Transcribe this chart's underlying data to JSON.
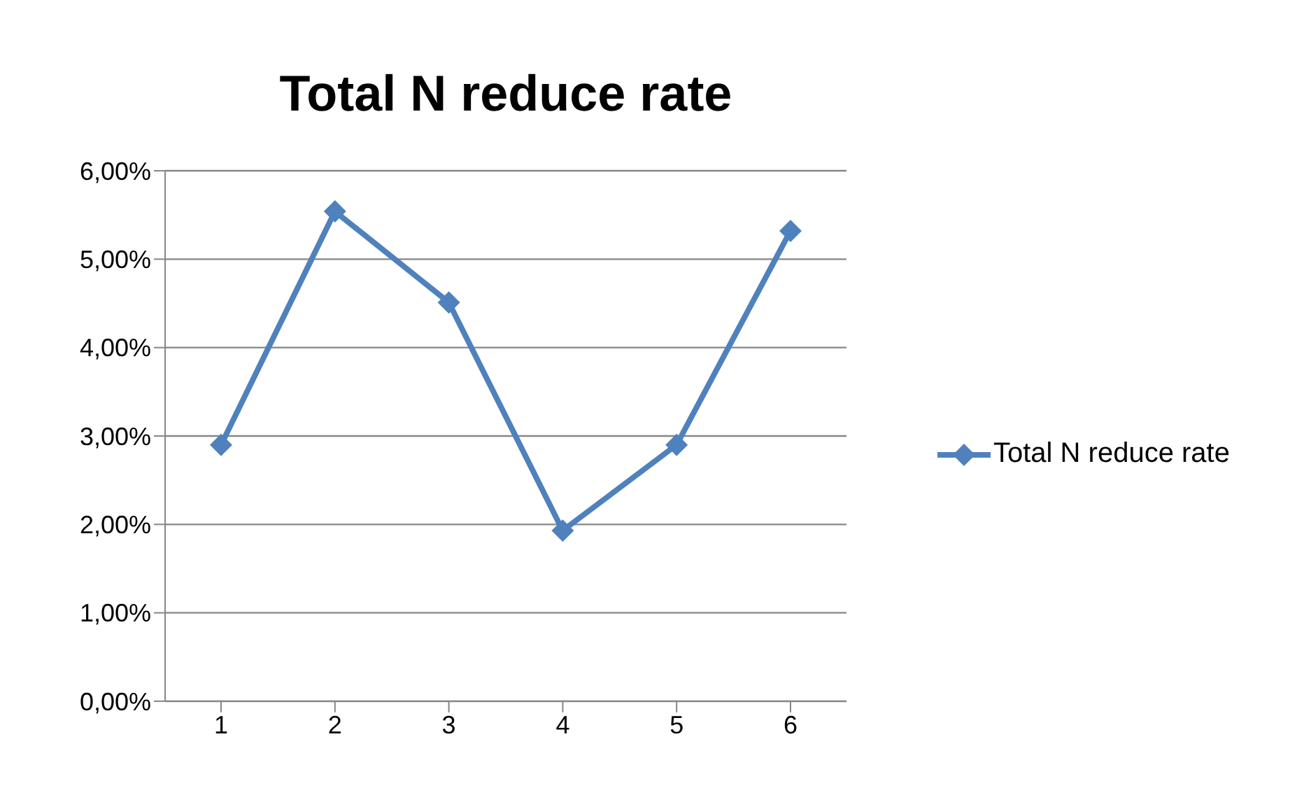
{
  "chart_data": {
    "type": "line",
    "title": "Total N reduce rate",
    "categories": [
      "1",
      "2",
      "3",
      "4",
      "5",
      "6"
    ],
    "series": [
      {
        "name": "Total N reduce rate",
        "color": "#4f81bd",
        "values": [
          2.9,
          5.54,
          4.51,
          1.93,
          2.9,
          5.32
        ]
      }
    ],
    "ylim": [
      0,
      6
    ],
    "yticks": [
      {
        "value": 0,
        "label": "0,00%"
      },
      {
        "value": 1,
        "label": "1,00%"
      },
      {
        "value": 2,
        "label": "2,00%"
      },
      {
        "value": 3,
        "label": "3,00%"
      },
      {
        "value": 4,
        "label": "4,00%"
      },
      {
        "value": 5,
        "label": "5,00%"
      },
      {
        "value": 6,
        "label": "6,00%"
      }
    ],
    "grid": "y",
    "legend": "right",
    "marker": "diamond",
    "line_style": "solid"
  }
}
